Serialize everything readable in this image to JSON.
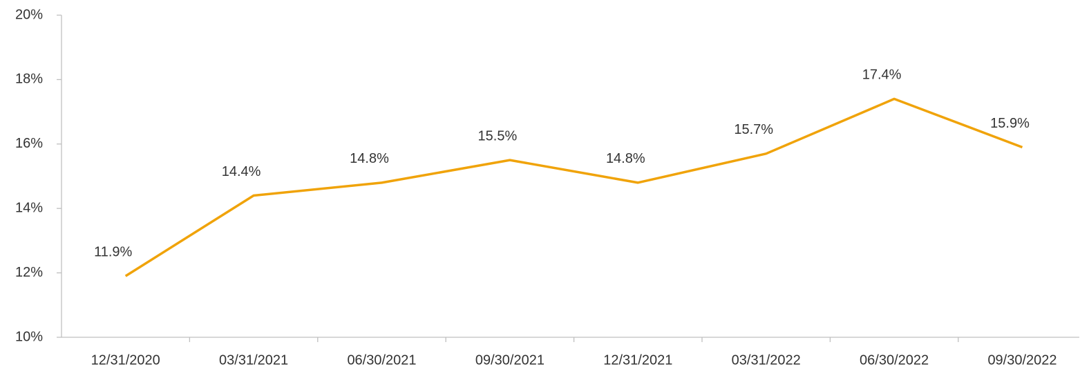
{
  "chart_data": {
    "type": "line",
    "categories": [
      "12/31/2020",
      "03/31/2021",
      "06/30/2021",
      "09/30/2021",
      "12/31/2021",
      "03/31/2022",
      "06/30/2022",
      "09/30/2022"
    ],
    "series": [
      {
        "color": "#f0a30a",
        "values": [
          11.9,
          14.4,
          14.8,
          15.5,
          14.8,
          15.7,
          17.4,
          15.9
        ],
        "value_labels": [
          "11.9%",
          "14.4%",
          "14.8%",
          "15.5%",
          "14.8%",
          "15.7%",
          "17.4%",
          "15.9%"
        ]
      }
    ],
    "ylim": [
      10,
      20
    ],
    "yticks": [
      {
        "value": 10,
        "label": "10%"
      },
      {
        "value": 12,
        "label": "12%"
      },
      {
        "value": 14,
        "label": "14%"
      },
      {
        "value": 16,
        "label": "16%"
      },
      {
        "value": 18,
        "label": "18%"
      },
      {
        "value": 20,
        "label": "20%"
      }
    ],
    "grid": false
  }
}
